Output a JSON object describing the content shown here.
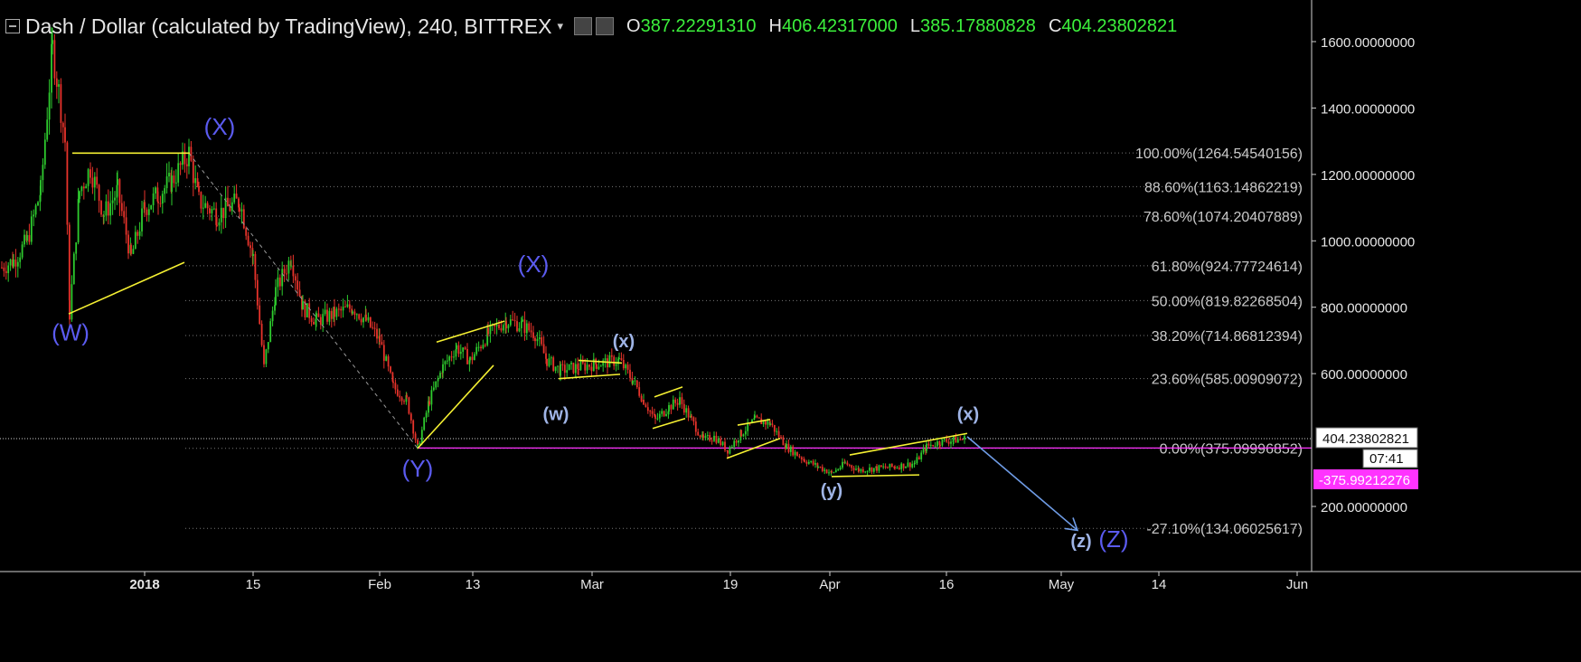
{
  "header": {
    "title": "Dash / Dollar (calculated by TradingView), 240, BITTREX",
    "caret": "▾",
    "open_label": "O",
    "open": "387.22291310",
    "high_label": "H",
    "high": "406.42317000",
    "low_label": "L",
    "low": "385.17880828",
    "close_label": "C",
    "close": "404.23802821"
  },
  "colors": {
    "background": "#000000",
    "up": "#2ecc2e",
    "down": "#e8332b",
    "trendline": "#f5f032",
    "label": "#5b5bf0",
    "sub_label": "#9fb4e6",
    "fib_text": "#c9c9c9",
    "current_line": "#ff33ff",
    "arrow": "#6f9ce6",
    "value_text": "#3cf03c"
  },
  "chart_data": {
    "type": "candlestick",
    "x_ticks": [
      "2018",
      "15",
      "Feb",
      "13",
      "Mar",
      "19",
      "Apr",
      "16",
      "May",
      "14",
      "Jun"
    ],
    "y_ticks": [
      "1600.00000000",
      "1400.00000000",
      "1200.00000000",
      "1000.00000000",
      "800.00000000",
      "600.00000000",
      "200.00000000"
    ],
    "ylim": [
      -60,
      1690
    ],
    "current_price": "404.23802821",
    "current_price_value": 404.24,
    "countdown": "07:41",
    "marker_price": "375.99212276",
    "marker_price_value": 375.99,
    "fib_levels": [
      {
        "label": "100.00%(1264.54540156)",
        "value": 1264.5454
      },
      {
        "label": "88.60%(1163.14862219)",
        "value": 1163.1486
      },
      {
        "label": "78.60%(1074.20407889)",
        "value": 1074.2041
      },
      {
        "label": "61.80%(924.77724614)",
        "value": 924.7772
      },
      {
        "label": "50.00%(819.82268504)",
        "value": 819.8227
      },
      {
        "label": "38.20%(714.86812394)",
        "value": 714.8681
      },
      {
        "label": "23.60%(585.00909072)",
        "value": 585.0091
      },
      {
        "label": "0.00%(375.09996852)",
        "value": 375.1
      },
      {
        "label": "-27.10%(134.06025617)",
        "value": 134.0603
      }
    ],
    "wave_labels": [
      {
        "text": "(W)",
        "x": 78,
        "price": 700
      },
      {
        "text": "(X)",
        "x": 243,
        "price": 1320
      },
      {
        "text": "(Y)",
        "x": 462,
        "price": 290
      },
      {
        "text": "(X)",
        "x": 590,
        "price": 905
      },
      {
        "text": "(w)",
        "x": 615,
        "price": 460
      },
      {
        "text": "(x)",
        "x": 690,
        "price": 680
      },
      {
        "text": "(y)",
        "x": 920,
        "price": 230
      },
      {
        "text": "(x)",
        "x": 1071,
        "price": 460
      },
      {
        "text": "(z)",
        "x": 1196,
        "price": 78
      },
      {
        "text": "(Z)",
        "x": 1232,
        "price": 78
      }
    ],
    "price_path": [
      [
        2,
        920
      ],
      [
        15,
        940
      ],
      [
        30,
        1000
      ],
      [
        45,
        1150
      ],
      [
        58,
        1580
      ],
      [
        65,
        1450
      ],
      [
        72,
        1300
      ],
      [
        77,
        780
      ],
      [
        88,
        1150
      ],
      [
        100,
        1220
      ],
      [
        115,
        1080
      ],
      [
        130,
        1150
      ],
      [
        145,
        950
      ],
      [
        160,
        1100
      ],
      [
        175,
        1140
      ],
      [
        190,
        1180
      ],
      [
        209,
        1264
      ],
      [
        220,
        1120
      ],
      [
        240,
        1080
      ],
      [
        265,
        1120
      ],
      [
        280,
        950
      ],
      [
        292,
        620
      ],
      [
        305,
        850
      ],
      [
        322,
        950
      ],
      [
        335,
        800
      ],
      [
        350,
        760
      ],
      [
        370,
        780
      ],
      [
        390,
        800
      ],
      [
        405,
        760
      ],
      [
        420,
        700
      ],
      [
        435,
        560
      ],
      [
        450,
        520
      ],
      [
        462,
        375
      ],
      [
        475,
        520
      ],
      [
        490,
        620
      ],
      [
        505,
        680
      ],
      [
        520,
        640
      ],
      [
        540,
        720
      ],
      [
        560,
        760
      ],
      [
        578,
        745
      ],
      [
        592,
        720
      ],
      [
        605,
        640
      ],
      [
        620,
        610
      ],
      [
        640,
        620
      ],
      [
        660,
        630
      ],
      [
        685,
        640
      ],
      [
        700,
        580
      ],
      [
        712,
        520
      ],
      [
        725,
        460
      ],
      [
        740,
        500
      ],
      [
        752,
        520
      ],
      [
        765,
        460
      ],
      [
        778,
        400
      ],
      [
        790,
        410
      ],
      [
        805,
        370
      ],
      [
        820,
        420
      ],
      [
        835,
        460
      ],
      [
        852,
        450
      ],
      [
        870,
        380
      ],
      [
        890,
        340
      ],
      [
        905,
        320
      ],
      [
        920,
        300
      ],
      [
        935,
        330
      ],
      [
        950,
        310
      ],
      [
        970,
        315
      ],
      [
        990,
        320
      ],
      [
        1012,
        330
      ],
      [
        1025,
        380
      ],
      [
        1040,
        395
      ],
      [
        1055,
        400
      ],
      [
        1068,
        404
      ]
    ],
    "trendlines": [
      {
        "x1": 80,
        "p1": 1264,
        "x2": 210,
        "p2": 1264
      },
      {
        "x1": 76,
        "p1": 780,
        "x2": 204,
        "p2": 935
      },
      {
        "x1": 462,
        "p1": 375,
        "x2": 546,
        "p2": 625
      },
      {
        "x1": 483,
        "p1": 695,
        "x2": 558,
        "p2": 758
      },
      {
        "x1": 640,
        "p1": 640,
        "x2": 688,
        "p2": 632
      },
      {
        "x1": 618,
        "p1": 585,
        "x2": 686,
        "p2": 598
      },
      {
        "x1": 724,
        "p1": 530,
        "x2": 755,
        "p2": 560
      },
      {
        "x1": 722,
        "p1": 435,
        "x2": 758,
        "p2": 465
      },
      {
        "x1": 816,
        "p1": 445,
        "x2": 852,
        "p2": 462
      },
      {
        "x1": 804,
        "p1": 345,
        "x2": 863,
        "p2": 405
      },
      {
        "x1": 940,
        "p1": 355,
        "x2": 1070,
        "p2": 420
      },
      {
        "x1": 920,
        "p1": 290,
        "x2": 1017,
        "p2": 295
      }
    ],
    "dashed_line": {
      "x1": 209,
      "p1": 1264,
      "x2": 462,
      "p2": 375
    },
    "projection_arrow": {
      "x1": 1070,
      "p1": 410,
      "x2": 1192,
      "p2": 128
    }
  }
}
